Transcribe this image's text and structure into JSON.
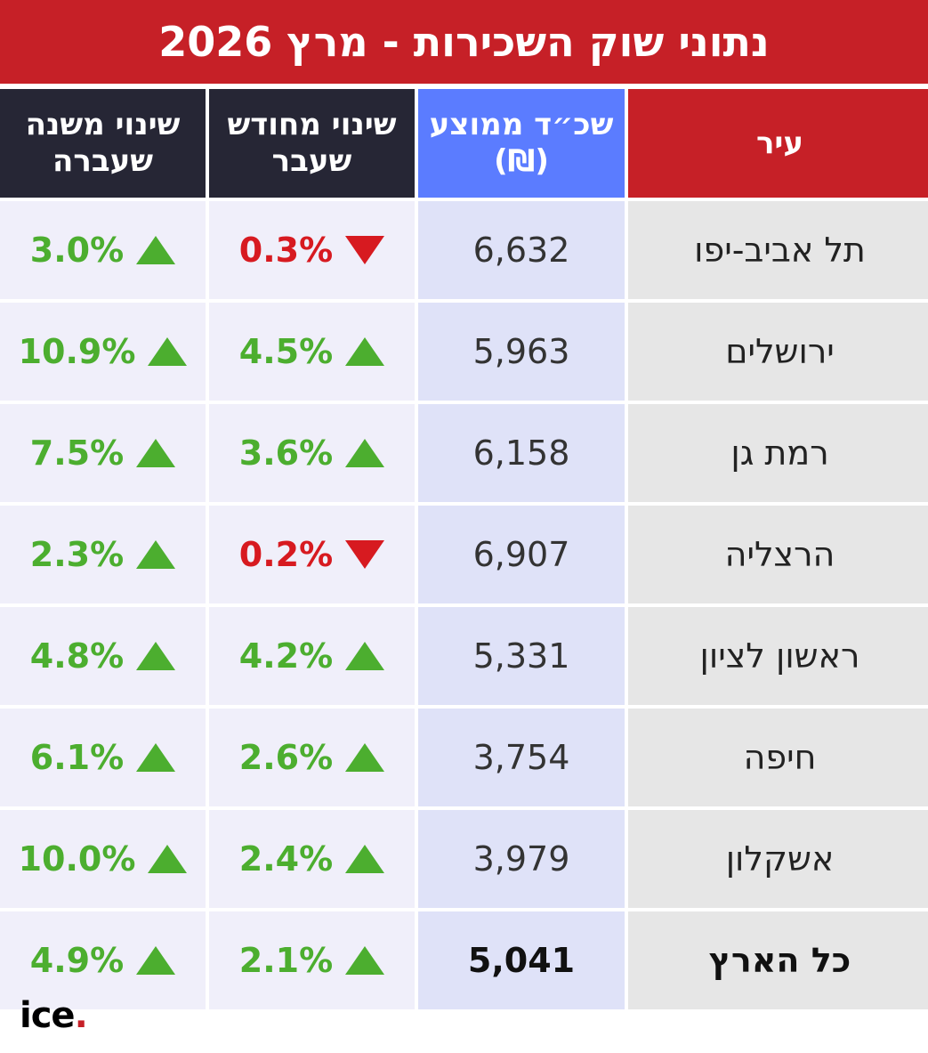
{
  "title": "נתוני שוק השכירות - מרץ 2026",
  "headers": {
    "year_change": "שינוי משנה שעברה",
    "month_change": "שינוי מחודש שעבר",
    "avg_rent": "שכ״ד ממוצע (₪)",
    "city": "עיר"
  },
  "rows": [
    {
      "city": "תל אביב-יפו",
      "rent": "6,632",
      "month": "0.3%",
      "month_dir": "down",
      "year": "3.0%",
      "year_dir": "up"
    },
    {
      "city": "ירושלים",
      "rent": "5,963",
      "month": "4.5%",
      "month_dir": "up",
      "year": "10.9%",
      "year_dir": "up"
    },
    {
      "city": "רמת גן",
      "rent": "6,158",
      "month": "3.6%",
      "month_dir": "up",
      "year": "7.5%",
      "year_dir": "up"
    },
    {
      "city": "הרצליה",
      "rent": "6,907",
      "month": "0.2%",
      "month_dir": "down",
      "year": "2.3%",
      "year_dir": "up"
    },
    {
      "city": "ראשון לציון",
      "rent": "5,331",
      "month": "4.2%",
      "month_dir": "up",
      "year": "4.8%",
      "year_dir": "up"
    },
    {
      "city": "חיפה",
      "rent": "3,754",
      "month": "2.6%",
      "month_dir": "up",
      "year": "6.1%",
      "year_dir": "up"
    },
    {
      "city": "אשקלון",
      "rent": "3,979",
      "month": "2.4%",
      "month_dir": "up",
      "year": "10.0%",
      "year_dir": "up"
    },
    {
      "city": "כל הארץ",
      "rent": "5,041",
      "month": "2.1%",
      "month_dir": "up",
      "year": "4.9%",
      "year_dir": "up"
    }
  ],
  "logo": {
    "text": "ice",
    "dot": "."
  },
  "colors": {
    "brand_red": "#c62027",
    "header_blue": "#5b7cff",
    "header_dark": "#262635",
    "up_green": "#4cae2f",
    "down_red": "#d71a20"
  }
}
